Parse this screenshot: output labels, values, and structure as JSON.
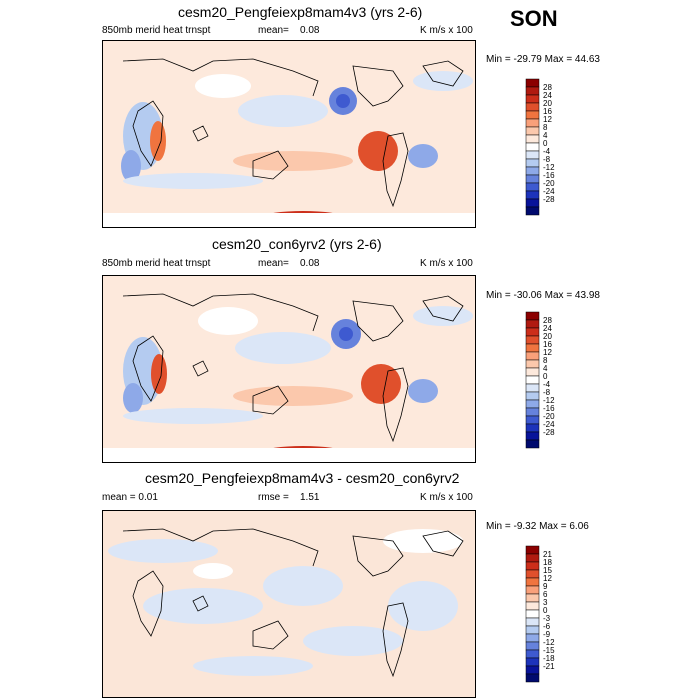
{
  "season": "SON",
  "panels": [
    {
      "title": "cesm20_Pengfeiexp8mam4v3 (yrs 2-6)",
      "left_label": "850mb merid heat trnspt",
      "stat_label": "mean=",
      "stat_value": "0.08",
      "units": "K m/s x 100",
      "minmax": "Min = -29.79 Max =  44.63",
      "colorbar_labels": [
        "28",
        "24",
        "20",
        "16",
        "12",
        "8",
        "4",
        "0",
        "-4",
        "-8",
        "-12",
        "-16",
        "-20",
        "-24",
        "-28"
      ]
    },
    {
      "title": "cesm20_con6yrv2 (yrs 2-6)",
      "left_label": "850mb merid heat trnspt",
      "stat_label": "mean=",
      "stat_value": "0.08",
      "units": "K m/s x 100",
      "minmax": "Min = -30.06 Max =  43.98",
      "colorbar_labels": [
        "28",
        "24",
        "20",
        "16",
        "12",
        "8",
        "4",
        "0",
        "-4",
        "-8",
        "-12",
        "-16",
        "-20",
        "-24",
        "-28"
      ]
    },
    {
      "title": "cesm20_Pengfeiexp8mam4v3 - cesm20_con6yrv2",
      "left_label": "mean =  0.01",
      "stat_label": "rmse =",
      "stat_value": "1.51",
      "units": "K m/s x 100",
      "minmax": "Min =  -9.32 Max =   6.06",
      "colorbar_labels": [
        "21",
        "18",
        "15",
        "12",
        "9",
        "6",
        "3",
        "0",
        "-3",
        "-6",
        "-9",
        "-12",
        "-15",
        "-18",
        "-21"
      ]
    }
  ],
  "colors": {
    "scale": [
      "#8b0000",
      "#b01a10",
      "#cc2e1a",
      "#e0502c",
      "#f0743f",
      "#f9a07a",
      "#fbc8ac",
      "#fde9dc",
      "#ffffff",
      "#dbe6f7",
      "#b4cbf0",
      "#8ea9e8",
      "#6682dc",
      "#3e5ad0",
      "#1c33bb",
      "#08139a",
      "#000a6e"
    ],
    "land_outline": "#000000"
  }
}
